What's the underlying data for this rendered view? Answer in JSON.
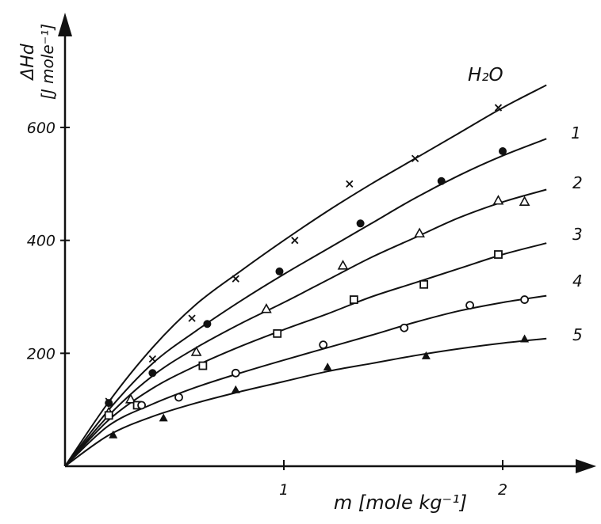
{
  "chart_data": {
    "type": "scatter",
    "title": "",
    "xlabel": "m [mole kg⁻¹]",
    "ylabel_main": "ΔHd",
    "ylabel_unit": "[J mole⁻¹]",
    "xlim": [
      0,
      2.3
    ],
    "ylim": [
      0,
      700
    ],
    "xticks": [
      1,
      2
    ],
    "yticks": [
      200,
      400,
      600
    ],
    "grid": false,
    "series": [
      {
        "name": "H₂O",
        "marker": "x",
        "label_at": [
          0.1,
          0.05
        ],
        "points": [
          [
            0.2,
            115
          ],
          [
            0.4,
            190
          ],
          [
            0.58,
            262
          ],
          [
            0.78,
            332
          ],
          [
            1.05,
            400
          ],
          [
            1.3,
            500
          ],
          [
            1.6,
            545
          ],
          [
            1.98,
            635
          ]
        ],
        "curve": [
          [
            0,
            0
          ],
          [
            0.2,
            114
          ],
          [
            0.4,
            210
          ],
          [
            0.6,
            287
          ],
          [
            0.8,
            345
          ],
          [
            1.0,
            400
          ],
          [
            1.2,
            452
          ],
          [
            1.4,
            500
          ],
          [
            1.6,
            545
          ],
          [
            1.8,
            590
          ],
          [
            2.0,
            635
          ],
          [
            2.2,
            675
          ]
        ]
      },
      {
        "name": "1",
        "marker": "filled-circle",
        "label_at": [
          0.1,
          0.05
        ],
        "points": [
          [
            0.2,
            112
          ],
          [
            0.4,
            165
          ],
          [
            0.65,
            252
          ],
          [
            0.98,
            345
          ],
          [
            1.35,
            430
          ],
          [
            1.72,
            505
          ],
          [
            2.0,
            558
          ]
        ],
        "curve": [
          [
            0,
            0
          ],
          [
            0.2,
            100
          ],
          [
            0.4,
            182
          ],
          [
            0.6,
            240
          ],
          [
            0.8,
            292
          ],
          [
            1.0,
            340
          ],
          [
            1.2,
            385
          ],
          [
            1.4,
            430
          ],
          [
            1.6,
            475
          ],
          [
            1.8,
            515
          ],
          [
            2.0,
            550
          ],
          [
            2.2,
            580
          ]
        ]
      },
      {
        "name": "2",
        "marker": "open-triangle",
        "label_at": [
          0.1,
          0.05
        ],
        "points": [
          [
            0.2,
            95
          ],
          [
            0.3,
            118
          ],
          [
            0.6,
            202
          ],
          [
            0.92,
            278
          ],
          [
            1.27,
            355
          ],
          [
            1.62,
            412
          ],
          [
            1.98,
            470
          ],
          [
            2.1,
            468
          ]
        ],
        "curve": [
          [
            0,
            0
          ],
          [
            0.2,
            90
          ],
          [
            0.4,
            160
          ],
          [
            0.6,
            210
          ],
          [
            0.8,
            252
          ],
          [
            1.0,
            290
          ],
          [
            1.2,
            330
          ],
          [
            1.4,
            370
          ],
          [
            1.6,
            405
          ],
          [
            1.8,
            440
          ],
          [
            2.0,
            468
          ],
          [
            2.2,
            490
          ]
        ]
      },
      {
        "name": "3",
        "marker": "open-square",
        "label_at": [
          0.1,
          0.05
        ],
        "points": [
          [
            0.2,
            90
          ],
          [
            0.33,
            108
          ],
          [
            0.63,
            178
          ],
          [
            0.97,
            235
          ],
          [
            1.32,
            295
          ],
          [
            1.64,
            322
          ],
          [
            1.98,
            375
          ]
        ],
        "curve": [
          [
            0,
            0
          ],
          [
            0.2,
            82
          ],
          [
            0.4,
            138
          ],
          [
            0.6,
            178
          ],
          [
            0.8,
            212
          ],
          [
            1.0,
            242
          ],
          [
            1.2,
            270
          ],
          [
            1.4,
            300
          ],
          [
            1.6,
            325
          ],
          [
            1.8,
            350
          ],
          [
            2.0,
            375
          ],
          [
            2.2,
            395
          ]
        ]
      },
      {
        "name": "4",
        "marker": "open-circle",
        "label_at": [
          0.1,
          0.05
        ],
        "points": [
          [
            0.35,
            108
          ],
          [
            0.52,
            122
          ],
          [
            0.78,
            165
          ],
          [
            1.18,
            215
          ],
          [
            1.55,
            245
          ],
          [
            1.85,
            285
          ],
          [
            2.1,
            295
          ]
        ],
        "curve": [
          [
            0,
            0
          ],
          [
            0.2,
            72
          ],
          [
            0.4,
            110
          ],
          [
            0.6,
            140
          ],
          [
            0.8,
            165
          ],
          [
            1.0,
            188
          ],
          [
            1.2,
            210
          ],
          [
            1.4,
            232
          ],
          [
            1.6,
            255
          ],
          [
            1.8,
            275
          ],
          [
            2.0,
            290
          ],
          [
            2.2,
            302
          ]
        ]
      },
      {
        "name": "5",
        "marker": "filled-triangle",
        "label_at": [
          0.1,
          0.05
        ],
        "points": [
          [
            0.22,
            55
          ],
          [
            0.45,
            85
          ],
          [
            0.78,
            135
          ],
          [
            1.2,
            175
          ],
          [
            1.65,
            195
          ],
          [
            2.1,
            225
          ]
        ],
        "curve": [
          [
            0,
            0
          ],
          [
            0.2,
            55
          ],
          [
            0.4,
            88
          ],
          [
            0.6,
            112
          ],
          [
            0.8,
            132
          ],
          [
            1.0,
            150
          ],
          [
            1.2,
            168
          ],
          [
            1.4,
            182
          ],
          [
            1.6,
            196
          ],
          [
            1.8,
            208
          ],
          [
            2.0,
            218
          ],
          [
            2.2,
            226
          ]
        ]
      }
    ]
  }
}
